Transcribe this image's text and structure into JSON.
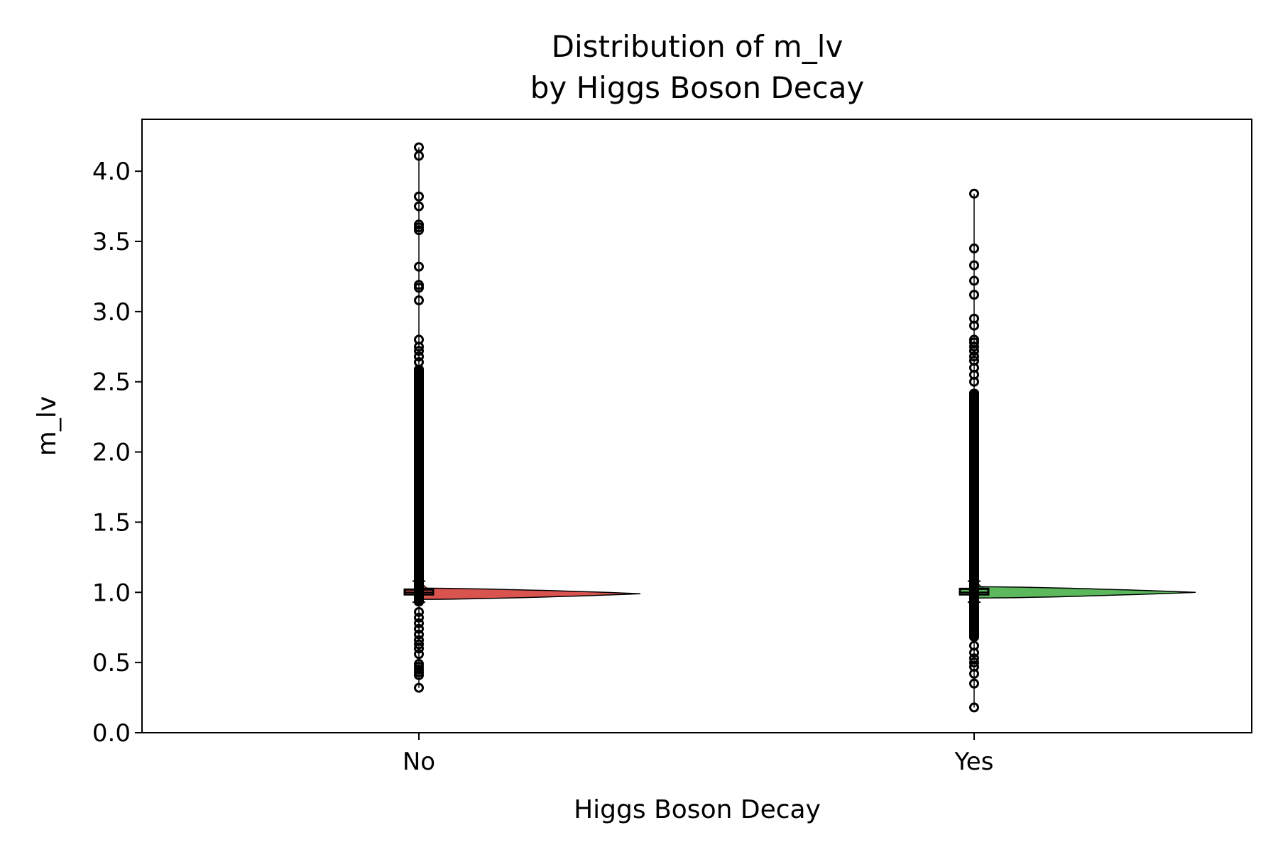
{
  "chart_data": {
    "type": "violin",
    "title_line1": "Distribution of m_lv",
    "title_line2": "by Higgs Boson Decay",
    "xlabel": "Higgs Boson Decay",
    "ylabel": "m_lv",
    "ylim": [
      0.0,
      4.37
    ],
    "yticks": [
      "0.0",
      "0.5",
      "1.0",
      "1.5",
      "2.0",
      "2.5",
      "3.0",
      "3.5",
      "4.0"
    ],
    "grid": false,
    "categories": [
      "No",
      "Yes"
    ],
    "series": [
      {
        "category": "No",
        "color": "#d9534f",
        "median": 1.0,
        "q1": 0.985,
        "q3": 1.02,
        "whisker_low": 0.93,
        "whisker_high": 1.08,
        "violin_peak": 0.99,
        "violin_span": [
          0.95,
          1.03
        ],
        "dense_outlier_range": [
          0.9,
          2.62
        ],
        "outliers": [
          0.32,
          0.41,
          0.43,
          0.45,
          0.47,
          0.49,
          0.56,
          0.6,
          0.63,
          0.66,
          0.7,
          0.74,
          0.78,
          0.82,
          0.86,
          2.64,
          2.68,
          2.72,
          2.75,
          2.8,
          3.08,
          3.17,
          3.19,
          3.32,
          3.58,
          3.6,
          3.62,
          3.75,
          3.82,
          4.11,
          4.17
        ]
      },
      {
        "category": "Yes",
        "color": "#5cb85c",
        "median": 1.0,
        "q1": 0.985,
        "q3": 1.025,
        "whisker_low": 0.93,
        "whisker_high": 1.08,
        "violin_peak": 1.0,
        "violin_span": [
          0.96,
          1.04
        ],
        "dense_outlier_range": [
          0.65,
          2.45
        ],
        "outliers": [
          0.18,
          0.35,
          0.42,
          0.47,
          0.5,
          0.53,
          0.57,
          0.62,
          2.5,
          2.55,
          2.6,
          2.65,
          2.68,
          2.72,
          2.75,
          2.78,
          2.8,
          2.9,
          2.95,
          3.12,
          3.22,
          3.33,
          3.45,
          3.84
        ]
      }
    ]
  }
}
